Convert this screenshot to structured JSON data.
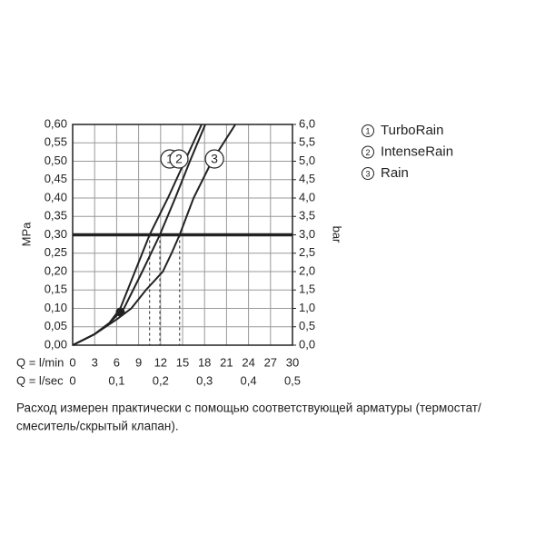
{
  "chart_data": {
    "type": "line",
    "x_title": "Q = l/min",
    "x2_title": "Q = l/sec",
    "y_title": "MPa",
    "y2_title": "bar",
    "xlim": [
      0,
      30
    ],
    "xticks": [
      0,
      3,
      6,
      9,
      12,
      15,
      18,
      21,
      24,
      27,
      30
    ],
    "x2lim": [
      0,
      0.5
    ],
    "x2ticks": [
      0,
      {
        "value": 0.1,
        "label": "0,1"
      },
      {
        "value": 0.2,
        "label": "0,2"
      },
      {
        "value": 0.3,
        "label": "0,3"
      },
      {
        "value": 0.4,
        "label": "0,4"
      },
      {
        "value": 0.5,
        "label": "0,5"
      }
    ],
    "ylim": [
      0,
      0.6
    ],
    "yticks": [
      {
        "value": 0,
        "label": "0,00"
      },
      {
        "value": 0.05,
        "label": "0,05"
      },
      {
        "value": 0.1,
        "label": "0,10"
      },
      {
        "value": 0.15,
        "label": "0,15"
      },
      {
        "value": 0.2,
        "label": "0,20"
      },
      {
        "value": 0.25,
        "label": "0,25"
      },
      {
        "value": 0.3,
        "label": "0,30"
      },
      {
        "value": 0.35,
        "label": "0,35"
      },
      {
        "value": 0.4,
        "label": "0,40"
      },
      {
        "value": 0.45,
        "label": "0,45"
      },
      {
        "value": 0.5,
        "label": "0,50"
      },
      {
        "value": 0.55,
        "label": "0,55"
      },
      {
        "value": 0.6,
        "label": "0,60"
      }
    ],
    "y2lim": [
      0,
      6
    ],
    "y2ticks": [
      {
        "value": 0,
        "label": "0,0"
      },
      {
        "value": 0.5,
        "label": "0,5"
      },
      {
        "value": 1,
        "label": "1,0"
      },
      {
        "value": 1.5,
        "label": "1,5"
      },
      {
        "value": 2,
        "label": "2,0"
      },
      {
        "value": 2.5,
        "label": "2,5"
      },
      {
        "value": 3,
        "label": "3,0"
      },
      {
        "value": 3.5,
        "label": "3,5"
      },
      {
        "value": 4,
        "label": "4,0"
      },
      {
        "value": 4.5,
        "label": "4,5"
      },
      {
        "value": 5,
        "label": "5,0"
      },
      {
        "value": 5.5,
        "label": "5,5"
      },
      {
        "value": 6,
        "label": "6,0"
      }
    ],
    "grid": true,
    "color": "#222222",
    "reference_line": 0.3,
    "marker": {
      "x": 6.5,
      "y": 0.09
    },
    "series": [
      {
        "name": "TurboRain",
        "label": "1",
        "x": [
          0,
          3,
          5,
          6.5,
          8.5,
          10.5,
          13,
          15.3,
          17.6
        ],
        "values": [
          0,
          0.03,
          0.06,
          0.1,
          0.2,
          0.3,
          0.4,
          0.5,
          0.6
        ]
      },
      {
        "name": "IntenseRain",
        "label": "2",
        "x": [
          0,
          3,
          5,
          7,
          9.5,
          11.9,
          14,
          16,
          18.1
        ],
        "values": [
          0,
          0.03,
          0.06,
          0.1,
          0.2,
          0.3,
          0.4,
          0.5,
          0.6
        ]
      },
      {
        "name": "Rain",
        "label": "3",
        "x": [
          0,
          3,
          6,
          8,
          10,
          12.3,
          13.5,
          14.6,
          16.5,
          19,
          22.2
        ],
        "values": [
          0,
          0.03,
          0.07,
          0.1,
          0.15,
          0.2,
          0.25,
          0.3,
          0.4,
          0.5,
          0.6
        ]
      }
    ]
  },
  "caption": [
    "Расход измерен практически с помощью соответствующей арматуры (термостат/",
    "смеситель/скрытый клапан)."
  ]
}
